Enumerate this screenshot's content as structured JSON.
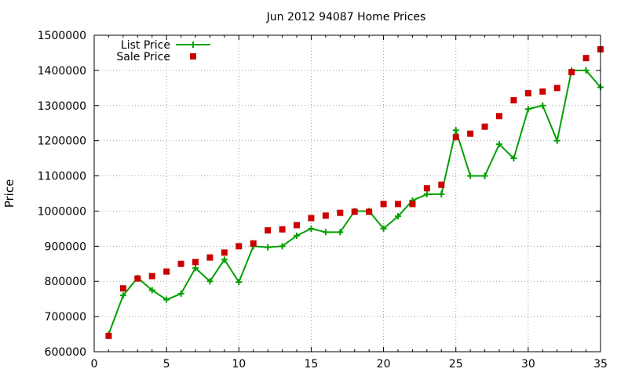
{
  "chart_data": {
    "type": "line",
    "title": "Jun 2012 94087 Home Prices",
    "xlabel": "",
    "ylabel": "Price",
    "xlim": [
      0,
      35
    ],
    "ylim": [
      600000,
      1500000
    ],
    "x_ticks": [
      0,
      5,
      10,
      15,
      20,
      25,
      30,
      35
    ],
    "y_ticks": [
      600000,
      700000,
      800000,
      900000,
      1000000,
      1100000,
      1200000,
      1300000,
      1400000,
      1500000
    ],
    "grid": true,
    "legend_position": "top-left",
    "x": [
      1,
      2,
      3,
      4,
      5,
      6,
      7,
      8,
      9,
      10,
      11,
      12,
      13,
      14,
      15,
      16,
      17,
      18,
      19,
      20,
      21,
      22,
      23,
      24,
      25,
      26,
      27,
      28,
      29,
      30,
      31,
      32,
      33,
      34,
      35
    ],
    "series": [
      {
        "name": "List Price",
        "style": "line-with-plus-markers",
        "color": "#00a000",
        "values": [
          650000,
          760000,
          810000,
          775000,
          748000,
          765000,
          838000,
          800000,
          862000,
          798000,
          900000,
          897000,
          900000,
          930000,
          950000,
          940000,
          940000,
          1000000,
          1000000,
          950000,
          985000,
          1030000,
          1048000,
          1048000,
          1230000,
          1100000,
          1100000,
          1190000,
          1150000,
          1290000,
          1300000,
          1200000,
          1400000,
          1400000,
          1352000
        ]
      },
      {
        "name": "Sale Price",
        "style": "square-markers",
        "color": "#cc0000",
        "values": [
          645000,
          780000,
          808000,
          815000,
          828000,
          850000,
          855000,
          868000,
          882000,
          900000,
          908000,
          945000,
          948000,
          960000,
          980000,
          987000,
          995000,
          998000,
          998000,
          1020000,
          1020000,
          1020000,
          1065000,
          1075000,
          1210000,
          1220000,
          1240000,
          1270000,
          1315000,
          1335000,
          1340000,
          1350000,
          1395000,
          1435000,
          1460000
        ]
      }
    ]
  }
}
